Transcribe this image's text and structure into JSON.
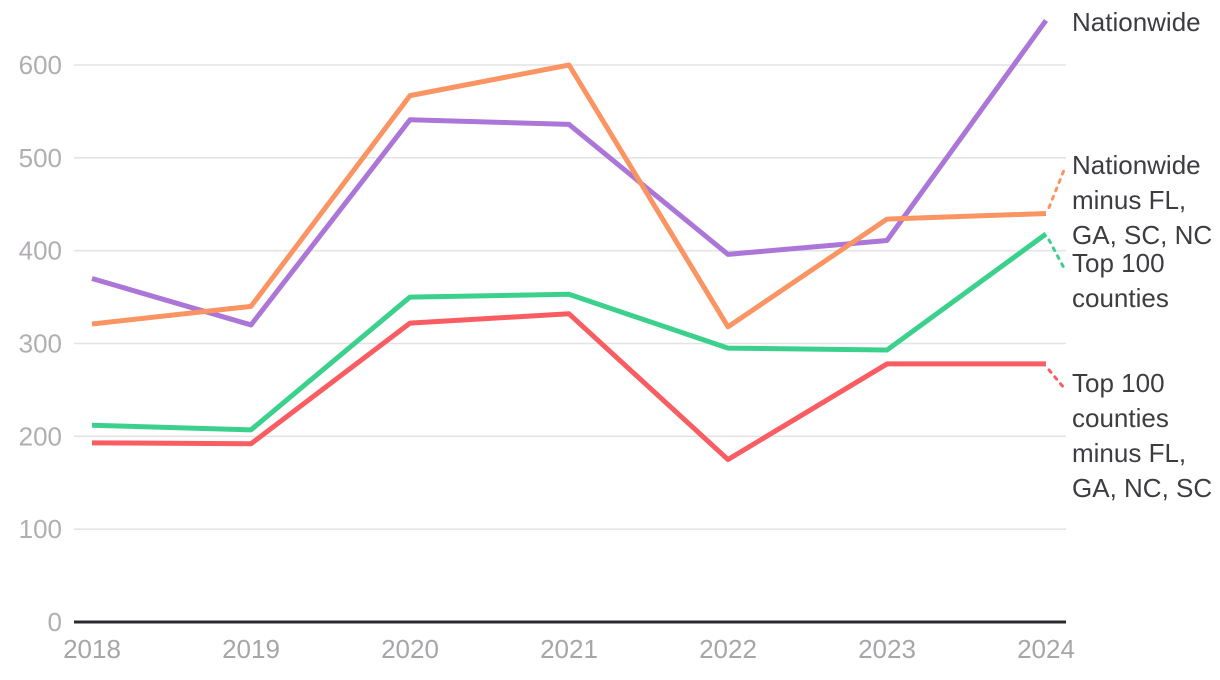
{
  "chart_data": {
    "type": "line",
    "x": [
      "2018",
      "2019",
      "2020",
      "2021",
      "2022",
      "2023",
      "2024"
    ],
    "yticks": [
      0,
      100,
      200,
      300,
      400,
      500,
      600
    ],
    "ylim": [
      0,
      660
    ],
    "grid": true,
    "legend_position": "right-annotations",
    "series": [
      {
        "name": "Nationwide",
        "color": "#ab76d7",
        "values": [
          370,
          320,
          541,
          536,
          396,
          411,
          648
        ],
        "label_lines": [
          "Nationwide"
        ]
      },
      {
        "name": "Nationwide minus FL, GA, SC, NC",
        "color": "#fb9463",
        "values": [
          321,
          340,
          567,
          600,
          318,
          434,
          440
        ],
        "label_lines": [
          "Nationwide",
          "minus FL,",
          "GA, SC, NC"
        ]
      },
      {
        "name": "Top 100 counties",
        "color": "#3bd18d",
        "values": [
          212,
          207,
          350,
          353,
          295,
          293,
          418
        ],
        "label_lines": [
          "Top 100",
          "counties"
        ]
      },
      {
        "name": "Top 100 counties minus FL, GA, NC, SC",
        "color": "#f95d62",
        "values": [
          193,
          192,
          322,
          332,
          175,
          278,
          278
        ],
        "label_lines": [
          "Top 100",
          "counties",
          "minus FL,",
          "GA, NC, SC"
        ]
      }
    ],
    "colors": {
      "gridline": "#e4e3e5",
      "axis": "#2c2a2e",
      "tick_text": "#b1aeb2",
      "x_text": "#a8a5a9",
      "label_text": "#3e3c40"
    }
  }
}
